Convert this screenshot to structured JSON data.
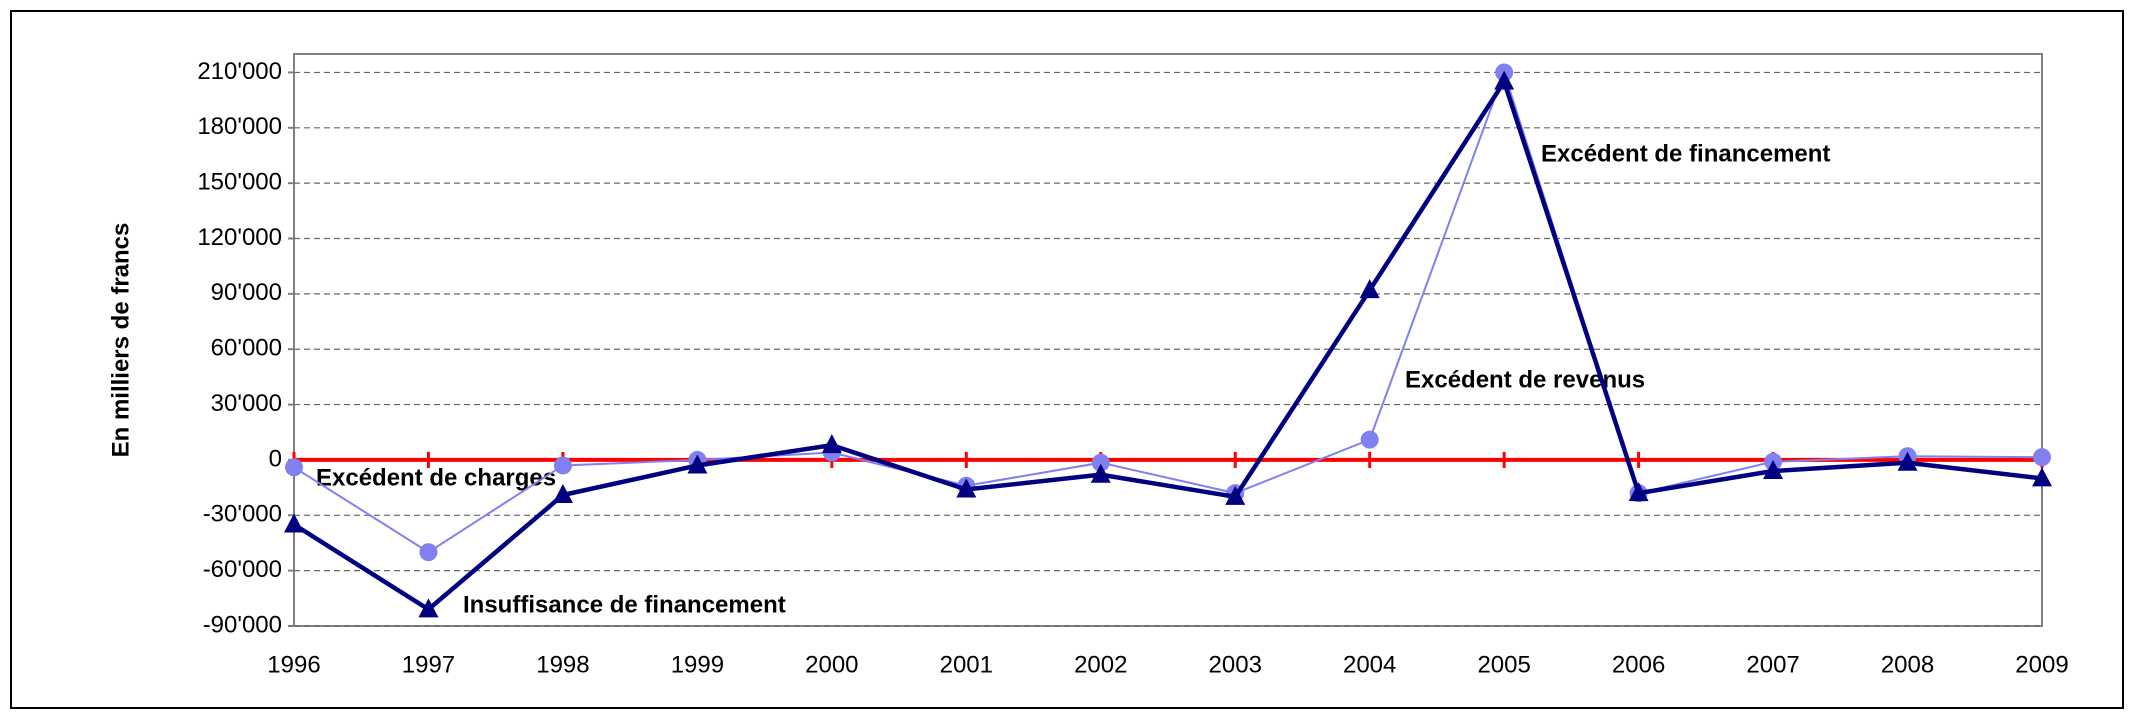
{
  "chart_data": {
    "type": "line",
    "y_label": "En  milliers  de  francs",
    "categories": [
      "1996",
      "1997",
      "1998",
      "1999",
      "2000",
      "2001",
      "2002",
      "2003",
      "2004",
      "2005",
      "2006",
      "2007",
      "2008",
      "2009"
    ],
    "series": [
      {
        "color": "#8080f0",
        "marker": "circle",
        "values": [
          -4000,
          -50000,
          -3000,
          0,
          4000,
          -14000,
          -1500,
          -18000,
          11000,
          210000,
          -18000,
          -1000,
          2000,
          1500
        ]
      },
      {
        "color": "#000080",
        "marker": "triangle",
        "values": [
          -35000,
          -81000,
          -19000,
          -3000,
          8000,
          -16000,
          -8000,
          -20000,
          92000,
          205000,
          -18000,
          -6000,
          -1500,
          -10000
        ]
      }
    ],
    "annotations": [
      "Excédent de charges",
      "Insuffisance de financement",
      "Excédent de revenus",
      "Excédent de financement"
    ],
    "ylim": [
      -90000,
      220000
    ],
    "yticks": [
      {
        "value": -90000,
        "label": "-90'000"
      },
      {
        "value": -60000,
        "label": "-60'000"
      },
      {
        "value": -30000,
        "label": "-30'000"
      },
      0,
      {
        "value": 30000,
        "label": "30'000"
      },
      {
        "value": 60000,
        "label": "60'000"
      },
      {
        "value": 90000,
        "label": "90'000"
      },
      {
        "value": 120000,
        "label": "120'000"
      },
      {
        "value": 150000,
        "label": "150'000"
      },
      {
        "value": 180000,
        "label": "180'000"
      },
      {
        "value": 210000,
        "label": "210'000"
      }
    ],
    "grid": true
  }
}
